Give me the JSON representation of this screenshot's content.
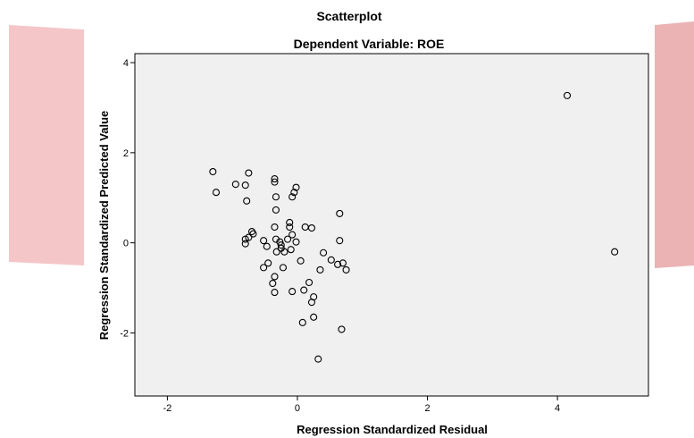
{
  "chart_data": {
    "type": "scatter",
    "title": "Scatterplot",
    "subtitle": "Dependent Variable: ROE",
    "xlabel": "Regression Standardized Residual",
    "ylabel": "Regression Standardized Predicted Value",
    "xlim": [
      -2.5,
      5.4
    ],
    "ylim": [
      -3.4,
      4.2
    ],
    "xticks": [
      -2,
      0,
      2,
      4
    ],
    "yticks": [
      -2,
      0,
      2,
      4
    ],
    "xtick_labels": [
      "-2",
      "0",
      "2",
      "4"
    ],
    "ytick_labels": [
      "-2",
      "0",
      "2",
      "4"
    ],
    "grid": false,
    "plot_background": "#f0f0f0",
    "marker": "hollow-circle",
    "points": [
      [
        -1.3,
        1.58
      ],
      [
        -1.25,
        1.12
      ],
      [
        -0.95,
        1.3
      ],
      [
        -0.8,
        1.28
      ],
      [
        -0.78,
        0.93
      ],
      [
        -0.75,
        1.55
      ],
      [
        -0.35,
        1.42
      ],
      [
        -0.35,
        1.35
      ],
      [
        -0.33,
        1.02
      ],
      [
        -0.33,
        0.73
      ],
      [
        -0.02,
        1.23
      ],
      [
        -0.05,
        1.12
      ],
      [
        -0.08,
        1.02
      ],
      [
        -0.12,
        0.45
      ],
      [
        -0.12,
        0.35
      ],
      [
        -0.35,
        0.35
      ],
      [
        0.12,
        0.35
      ],
      [
        0.22,
        0.33
      ],
      [
        0.65,
        0.65
      ],
      [
        -0.7,
        0.25
      ],
      [
        -0.68,
        0.2
      ],
      [
        -0.75,
        0.12
      ],
      [
        -0.8,
        0.08
      ],
      [
        -0.8,
        -0.02
      ],
      [
        -0.52,
        0.05
      ],
      [
        -0.47,
        -0.08
      ],
      [
        -0.33,
        0.08
      ],
      [
        -0.27,
        0.02
      ],
      [
        -0.25,
        -0.05
      ],
      [
        -0.15,
        0.08
      ],
      [
        -0.08,
        0.18
      ],
      [
        -0.02,
        0.02
      ],
      [
        -0.25,
        -0.12
      ],
      [
        -0.1,
        -0.15
      ],
      [
        -0.2,
        -0.2
      ],
      [
        -0.32,
        -0.2
      ],
      [
        -0.45,
        -0.45
      ],
      [
        -0.52,
        -0.55
      ],
      [
        -0.22,
        -0.55
      ],
      [
        0.05,
        -0.4
      ],
      [
        0.4,
        -0.22
      ],
      [
        0.52,
        -0.38
      ],
      [
        0.62,
        -0.48
      ],
      [
        0.7,
        -0.45
      ],
      [
        0.75,
        -0.6
      ],
      [
        0.65,
        0.05
      ],
      [
        -0.35,
        -0.75
      ],
      [
        -0.38,
        -0.9
      ],
      [
        0.18,
        -0.88
      ],
      [
        0.35,
        -0.6
      ],
      [
        0.1,
        -1.05
      ],
      [
        -0.08,
        -1.08
      ],
      [
        -0.35,
        -1.1
      ],
      [
        0.25,
        -1.2
      ],
      [
        0.22,
        -1.32
      ],
      [
        0.25,
        -1.65
      ],
      [
        0.08,
        -1.77
      ],
      [
        0.68,
        -1.92
      ],
      [
        0.32,
        -2.58
      ],
      [
        4.15,
        3.27
      ],
      [
        4.88,
        -0.2
      ]
    ]
  },
  "side_marks": {
    "left_color": "#f5c6c8",
    "right_color": "#ebb3b4"
  }
}
